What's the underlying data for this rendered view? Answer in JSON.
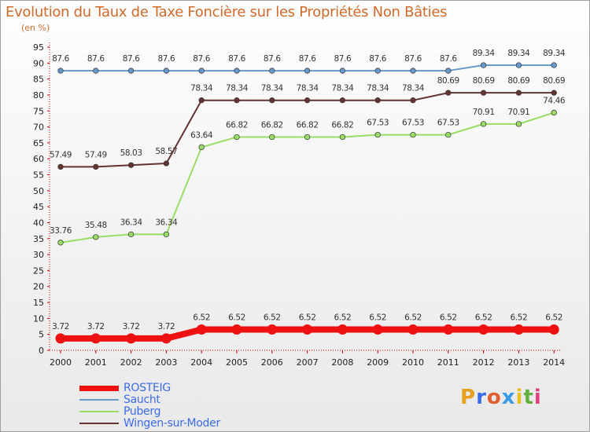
{
  "chart_data": {
    "type": "line",
    "title": "Evolution du Taux de Taxe Foncière sur les Propriétés Non Bâties",
    "ylabel": "(en %)",
    "xlabel": "",
    "categories": [
      "2000",
      "2001",
      "2002",
      "2003",
      "2004",
      "2005",
      "2006",
      "2007",
      "2008",
      "2009",
      "2010",
      "2011",
      "2012",
      "2013",
      "2014"
    ],
    "ylim": [
      0,
      95
    ],
    "yticks": [
      0,
      5,
      10,
      15,
      20,
      25,
      30,
      35,
      40,
      45,
      50,
      55,
      60,
      65,
      70,
      75,
      80,
      85,
      90,
      95
    ],
    "grid": false,
    "legend_position": "bottom-left",
    "series": [
      {
        "name": "ROSTEIG",
        "color": "#ee1111",
        "labels": [
          "3.72",
          "3.72",
          "3.72",
          "3.72",
          "6.52",
          "6.52",
          "6.52",
          "6.52",
          "6.52",
          "6.52",
          "6.52",
          "6.52",
          "6.52",
          "6.52",
          "6.52"
        ],
        "values": [
          3.72,
          3.72,
          3.72,
          3.72,
          6.52,
          6.52,
          6.52,
          6.52,
          6.52,
          6.52,
          6.52,
          6.52,
          6.52,
          6.52,
          6.52
        ]
      },
      {
        "name": "Saucht",
        "color": "#6699cc",
        "labels": [
          "87.6",
          "87.6",
          "87.6",
          "87.6",
          "87.6",
          "87.6",
          "87.6",
          "87.6",
          "87.6",
          "87.6",
          "87.6",
          "87.6",
          "89.34",
          "89.34",
          "89.34"
        ],
        "values": [
          87.6,
          87.6,
          87.6,
          87.6,
          87.6,
          87.6,
          87.6,
          87.6,
          87.6,
          87.6,
          87.6,
          87.6,
          89.34,
          89.34,
          89.34
        ]
      },
      {
        "name": "Puberg",
        "color": "#99dd66",
        "labels": [
          "33.76",
          "35.48",
          "36.34",
          "36.34",
          "63.64",
          "66.82",
          "66.82",
          "66.82",
          "66.82",
          "67.53",
          "67.53",
          "67.53",
          "70.91",
          "70.91",
          "74.46"
        ],
        "values": [
          33.76,
          35.48,
          36.34,
          36.34,
          63.64,
          66.82,
          66.82,
          66.82,
          66.82,
          67.53,
          67.53,
          67.53,
          70.91,
          70.91,
          74.46
        ]
      },
      {
        "name": "Wingen-sur-Moder",
        "color": "#663333",
        "labels": [
          "57.49",
          "57.49",
          "58.03",
          "58.57",
          "78.34",
          "78.34",
          "78.34",
          "78.34",
          "78.34",
          "78.34",
          "78.34",
          "80.69",
          "80.69",
          "80.69",
          "80.69"
        ],
        "values": [
          57.49,
          57.49,
          58.03,
          58.57,
          78.34,
          78.34,
          78.34,
          78.34,
          78.34,
          78.34,
          78.34,
          80.69,
          80.69,
          80.69,
          80.69
        ]
      }
    ]
  },
  "logo": {
    "text": "Proxiti",
    "letter_colors": [
      "#e8a020",
      "#3b6ce8",
      "#e06030",
      "#3b9ae8",
      "#e8c020",
      "#60b040",
      "#e04080"
    ]
  }
}
